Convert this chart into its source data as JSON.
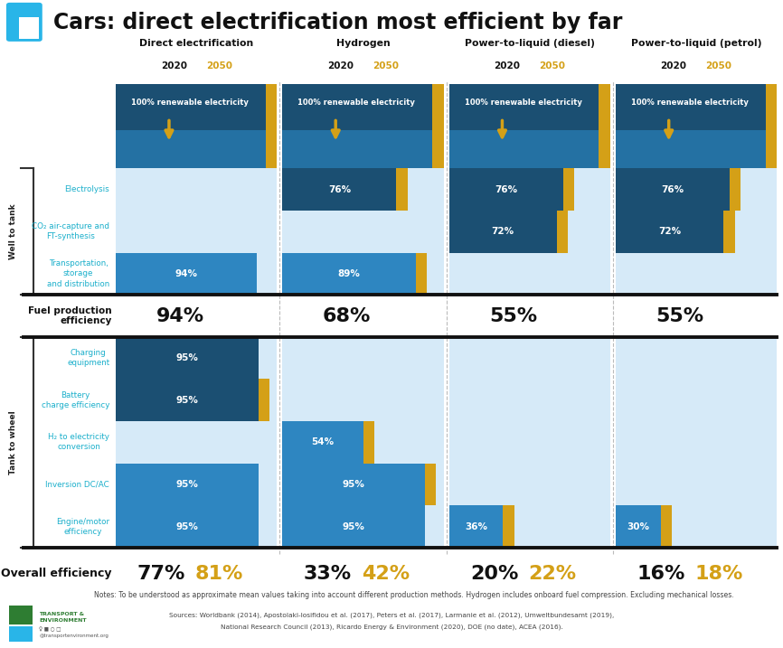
{
  "title": "Cars: direct electrification most efficient by far",
  "bg_color": "#FFFFFF",
  "columns": [
    "Direct electrification",
    "Hydrogen",
    "Power-to-liquid (diesel)",
    "Power-to-liquid (petrol)"
  ],
  "year_2050_color": "#D4A017",
  "dark_blue": "#1B4F72",
  "mid_blue": "#2E86C1",
  "lighter_blue_bg": "#D6EAF8",
  "medium_blue_bg": "#AED6F1",
  "gold": "#D4A017",
  "header_bg_top": "#1B4F72",
  "header_bg_bot": "#2471A3",
  "cyan_label": "#1AAFCB",
  "fuel_prod_efficiency": [
    94,
    68,
    55,
    55
  ],
  "overall_2020": [
    77,
    33,
    20,
    16
  ],
  "overall_2050": [
    81,
    42,
    22,
    18
  ],
  "w2t_bars": [
    [
      null,
      76,
      76,
      76
    ],
    [
      null,
      null,
      72,
      72
    ],
    [
      94,
      89,
      null,
      null
    ]
  ],
  "w2t_bar_colors": [
    "#1B4F72",
    "#1B4F72",
    "#2E86C1"
  ],
  "w2t_gold_stripe": [
    [
      false,
      true,
      true,
      true
    ],
    [
      false,
      false,
      true,
      true
    ],
    [
      false,
      true,
      false,
      false
    ]
  ],
  "t2w_bars": [
    [
      95,
      null,
      null,
      null
    ],
    [
      95,
      null,
      null,
      null
    ],
    [
      null,
      54,
      null,
      null
    ],
    [
      95,
      95,
      null,
      null
    ],
    [
      95,
      95,
      36,
      30
    ]
  ],
  "t2w_bar_colors": [
    "#1B4F72",
    "#1B4F72",
    "#2E86C1",
    "#2E86C1",
    "#2E86C1"
  ],
  "t2w_gold_stripe": [
    [
      false,
      false,
      false,
      false
    ],
    [
      true,
      false,
      false,
      false
    ],
    [
      false,
      true,
      false,
      false
    ],
    [
      false,
      true,
      false,
      false
    ],
    [
      false,
      false,
      true,
      true
    ]
  ],
  "notes": "Notes: To be understood as approximate mean values taking into account different production methods. Hydrogen includes onboard fuel compression. Excluding mechanical losses.",
  "sources_line1": "Sources: Worldbank (2014), Apostolaki-Iosifidou et al. (2017), Peters et al. (2017), Larmanie et al. (2012), Umweltbundesamt (2019),",
  "sources_line2": "National Research Council (2013), Ricardo Energy & Environment (2020), DOE (no date), ACEA (2016)."
}
